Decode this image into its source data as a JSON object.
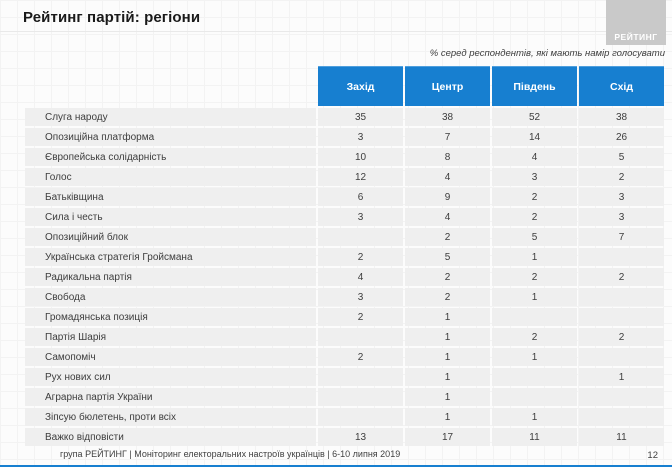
{
  "slide": {
    "title": "Рейтинг партій: регіони",
    "logo_text": "РЕЙТИНГ",
    "note": "% серед респондентів, які мають намір голосувати",
    "footer": {
      "source_line": "група РЕЙТИНГ |  Моніторинг електоральних настроїв українців  |  6-10 липня 2019",
      "page_number": "12"
    },
    "colors": {
      "header_blue": "#177fd0",
      "row_gray": "#efefef",
      "logo_gray": "#c9c9c9",
      "accent_bar_blue": "#177fd0"
    }
  },
  "chart_data": {
    "type": "table",
    "title": "Рейтинг партій: регіони",
    "unit_note": "% серед респондентів, які мають намір голосувати",
    "columns": [
      "Захід",
      "Центр",
      "Південь",
      "Схід"
    ],
    "rows": [
      {
        "label": "Слуга народу",
        "values": [
          "35",
          "38",
          "52",
          "38"
        ]
      },
      {
        "label": "Опозиційна платформа",
        "values": [
          "3",
          "7",
          "14",
          "26"
        ]
      },
      {
        "label": "Європейська солідарність",
        "values": [
          "10",
          "8",
          "4",
          "5"
        ]
      },
      {
        "label": "Голос",
        "values": [
          "12",
          "4",
          "3",
          "2"
        ]
      },
      {
        "label": "Батьківщина",
        "values": [
          "6",
          "9",
          "2",
          "3"
        ]
      },
      {
        "label": "Сила і честь",
        "values": [
          "3",
          "4",
          "2",
          "3"
        ]
      },
      {
        "label": "Опозиційний блок",
        "values": [
          "",
          "2",
          "5",
          "7"
        ]
      },
      {
        "label": "Українська стратегія Гройсмана",
        "values": [
          "2",
          "5",
          "1",
          ""
        ]
      },
      {
        "label": "Радикальна партія",
        "values": [
          "4",
          "2",
          "2",
          "2"
        ]
      },
      {
        "label": "Свобода",
        "values": [
          "3",
          "2",
          "1",
          ""
        ]
      },
      {
        "label": "Громадянська позиція",
        "values": [
          "2",
          "1",
          "",
          ""
        ]
      },
      {
        "label": "Партія Шарія",
        "values": [
          "",
          "1",
          "2",
          "2"
        ]
      },
      {
        "label": "Самопоміч",
        "values": [
          "2",
          "1",
          "1",
          ""
        ]
      },
      {
        "label": "Рух нових сил",
        "values": [
          "",
          "1",
          "",
          "1"
        ]
      },
      {
        "label": "Аграрна партія України",
        "values": [
          "",
          "1",
          "",
          ""
        ]
      },
      {
        "label": "Зіпсую бюлетень, проти всіх",
        "values": [
          "",
          "1",
          "1",
          ""
        ]
      },
      {
        "label": "Важко відповісти",
        "values": [
          "13",
          "17",
          "11",
          "11"
        ]
      }
    ]
  }
}
